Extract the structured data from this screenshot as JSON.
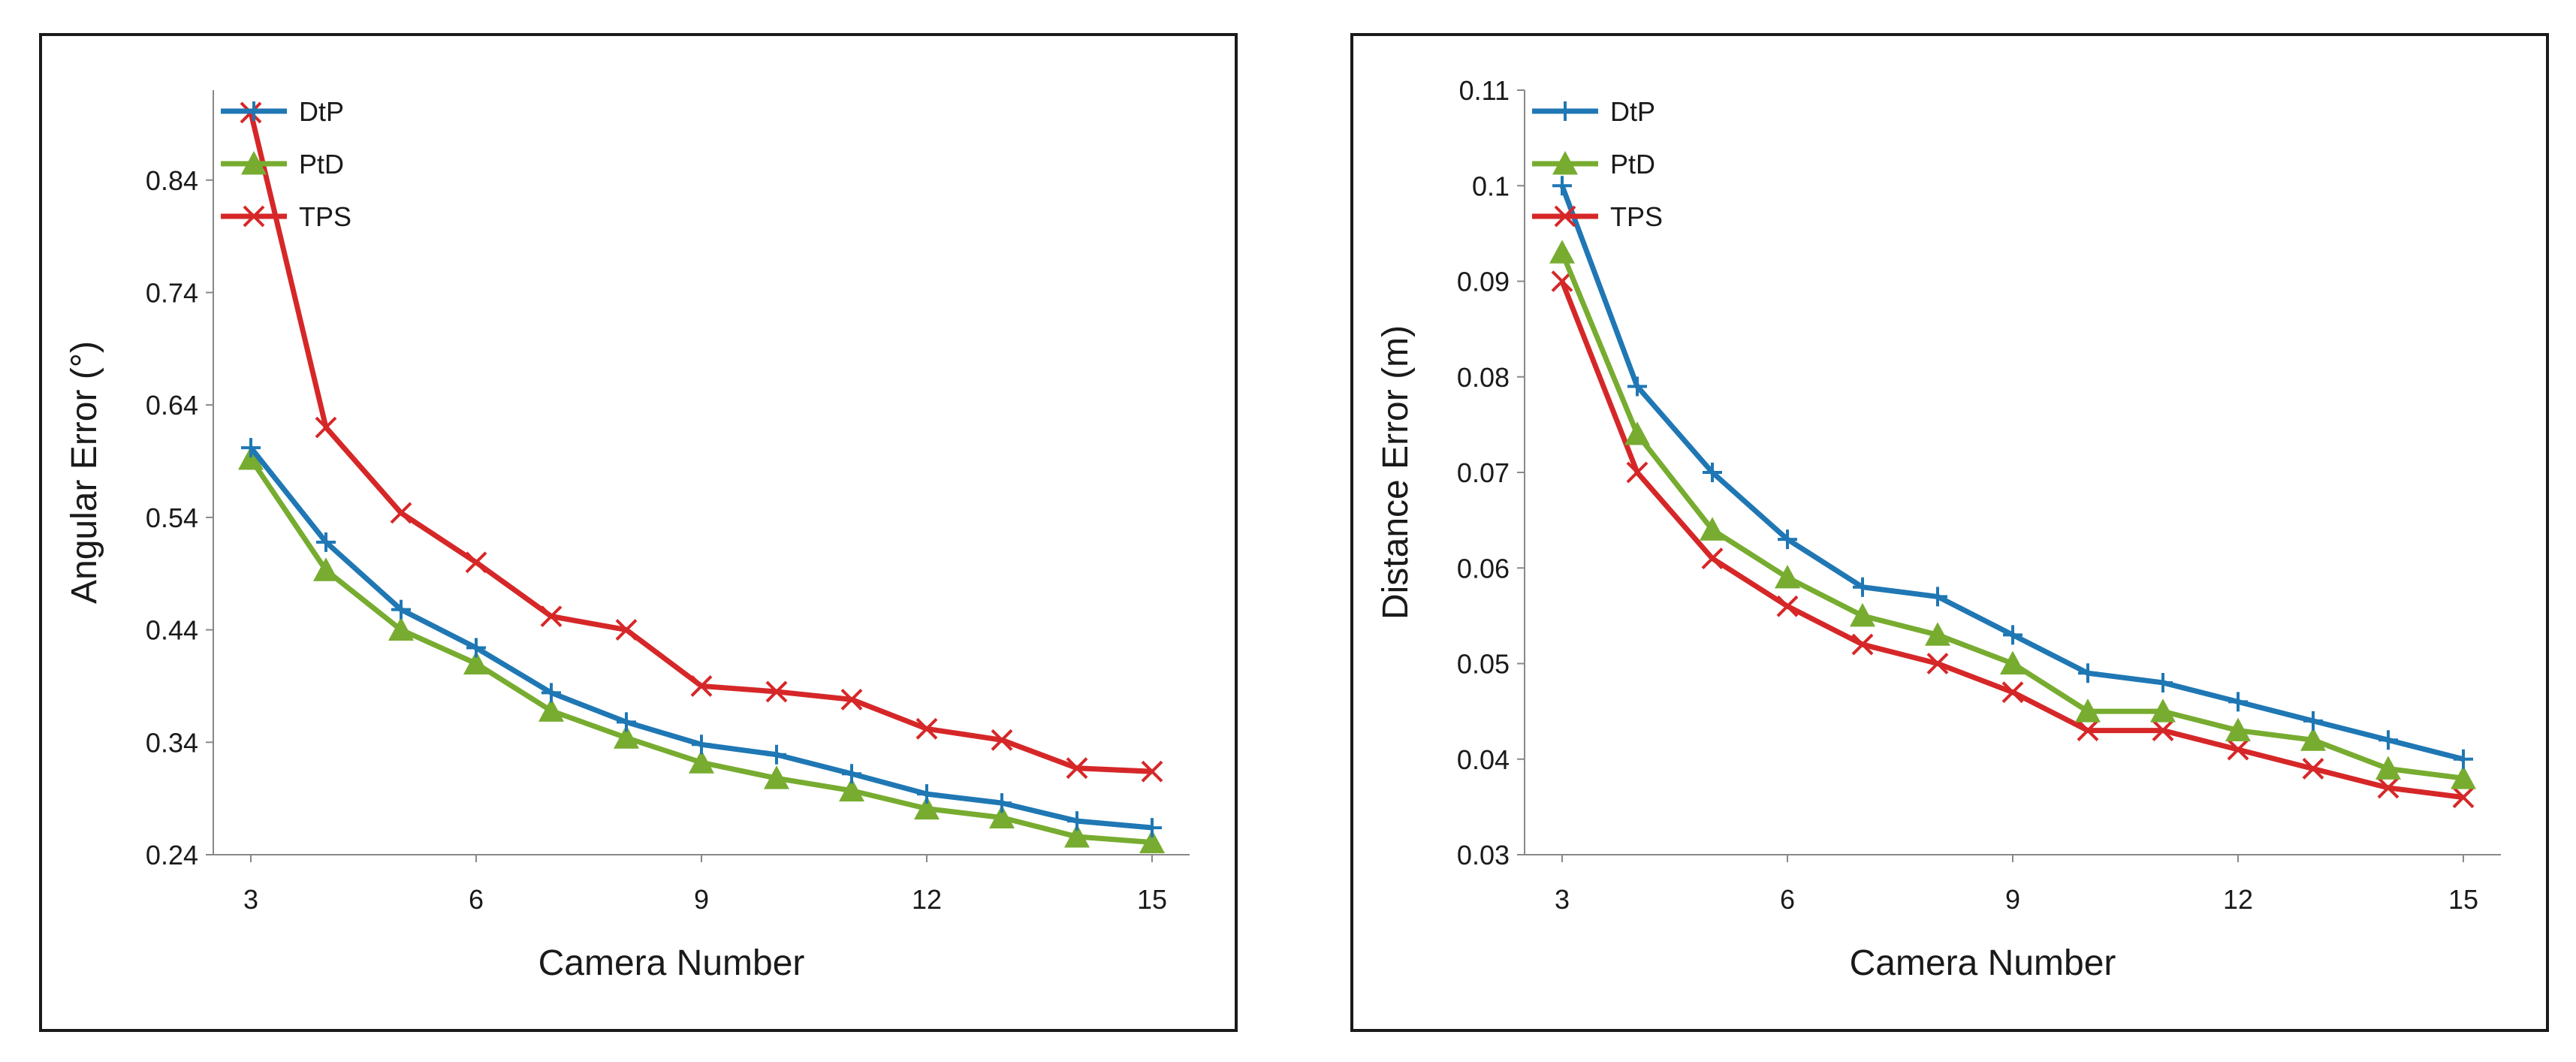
{
  "chart_data": [
    {
      "type": "line",
      "xlabel": "Camera Number",
      "ylabel": "Angular Error (°)",
      "x": [
        3,
        4,
        5,
        6,
        7,
        8,
        9,
        10,
        11,
        12,
        13,
        14,
        15
      ],
      "xticks": [
        "3",
        "6",
        "9",
        "12",
        "15"
      ],
      "xlim": [
        2.5,
        15.5
      ],
      "ylim": [
        0.24,
        0.92
      ],
      "yticks": [
        "0.24",
        "0.34",
        "0.44",
        "0.54",
        "0.64",
        "0.74",
        "0.84"
      ],
      "legend_position": "top-left",
      "grid": false,
      "series": [
        {
          "name": "DtP",
          "color": "#1f77b4",
          "marker": "plus",
          "values": [
            0.602,
            0.518,
            0.458,
            0.424,
            0.384,
            0.358,
            0.338,
            0.329,
            0.312,
            0.294,
            0.286,
            0.27,
            0.264
          ]
        },
        {
          "name": "PtD",
          "color": "#77ac30",
          "marker": "triangle",
          "values": [
            0.592,
            0.493,
            0.44,
            0.41,
            0.368,
            0.344,
            0.322,
            0.308,
            0.297,
            0.281,
            0.273,
            0.256,
            0.251
          ]
        },
        {
          "name": "TPS",
          "color": "#d62728",
          "marker": "x",
          "values": [
            0.9,
            0.62,
            0.544,
            0.5,
            0.452,
            0.44,
            0.39,
            0.385,
            0.378,
            0.352,
            0.342,
            0.317,
            0.314
          ]
        }
      ]
    },
    {
      "type": "line",
      "xlabel": "Camera Number",
      "ylabel": "Distance Error (m)",
      "x": [
        3,
        4,
        5,
        6,
        7,
        8,
        9,
        10,
        11,
        12,
        13,
        14,
        15
      ],
      "xticks": [
        "3",
        "6",
        "9",
        "12",
        "15"
      ],
      "xlim": [
        2.5,
        15.5
      ],
      "ylim": [
        0.03,
        0.11
      ],
      "yticks": [
        "0.03",
        "0.04",
        "0.05",
        "0.06",
        "0.07",
        "0.08",
        "0.09",
        "0.1",
        "0.11"
      ],
      "legend_position": "top-left",
      "grid": false,
      "series": [
        {
          "name": "DtP",
          "color": "#1f77b4",
          "marker": "plus",
          "values": [
            0.1,
            0.079,
            0.07,
            0.063,
            0.058,
            0.057,
            0.053,
            0.049,
            0.048,
            0.046,
            0.044,
            0.042,
            0.04
          ]
        },
        {
          "name": "PtD",
          "color": "#77ac30",
          "marker": "triangle",
          "values": [
            0.093,
            0.074,
            0.064,
            0.059,
            0.055,
            0.053,
            0.05,
            0.045,
            0.045,
            0.043,
            0.042,
            0.039,
            0.038
          ]
        },
        {
          "name": "TPS",
          "color": "#d62728",
          "marker": "x",
          "values": [
            0.09,
            0.07,
            0.061,
            0.056,
            0.052,
            0.05,
            0.047,
            0.043,
            0.043,
            0.041,
            0.039,
            0.037,
            0.036
          ]
        }
      ]
    }
  ]
}
